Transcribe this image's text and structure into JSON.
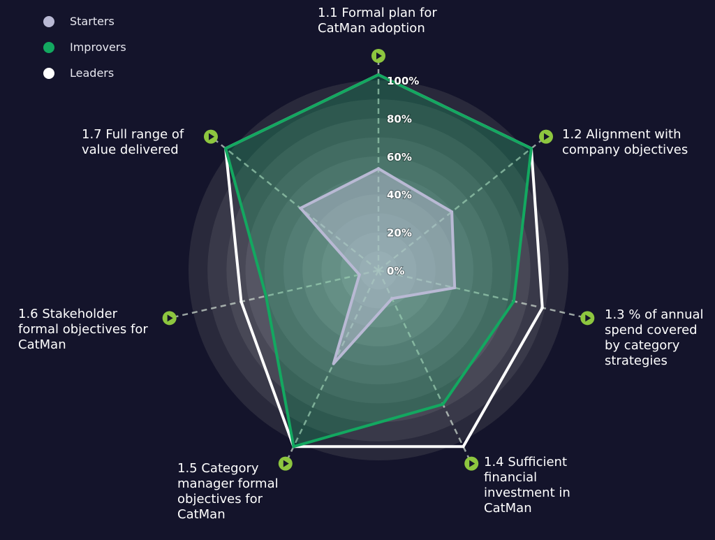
{
  "chart_data": {
    "type": "radar",
    "axes": [
      "1.1 Formal plan for\nCatMan adoption",
      "1.2 Alignment with\ncompany objectives",
      "1.3 % of annual\nspend covered\nby category\nstrategies",
      "1.4 Sufficient\nfinancial\ninvestment in\nCatMan",
      "1.5 Category\nmanager formal\nobjectives for\nCatMan",
      "1.6 Stakeholder\nformal objectives for\nCatMan",
      "1.7  Full range of\nvalue delivered"
    ],
    "tick_labels": [
      "0%",
      "20%",
      "40%",
      "60%",
      "80%",
      "100%"
    ],
    "range": [
      0,
      100
    ],
    "series": [
      {
        "name": "Leaders",
        "color": "#ffffff",
        "values": [
          100,
          100,
          86,
          100,
          100,
          72,
          100
        ]
      },
      {
        "name": "Improvers",
        "color": "#13a860",
        "values": [
          100,
          100,
          71,
          76,
          100,
          59,
          100
        ]
      },
      {
        "name": "Starters",
        "color": "#b9b9d4",
        "values": [
          52,
          48,
          40,
          16,
          53,
          10,
          51
        ]
      }
    ],
    "legend": [
      "Starters",
      "Improvers",
      "Leaders"
    ],
    "legend_placement": "top-left",
    "axis_marker_icon": "play-circle-icon",
    "axis_marker_color": "#8dc63f"
  }
}
